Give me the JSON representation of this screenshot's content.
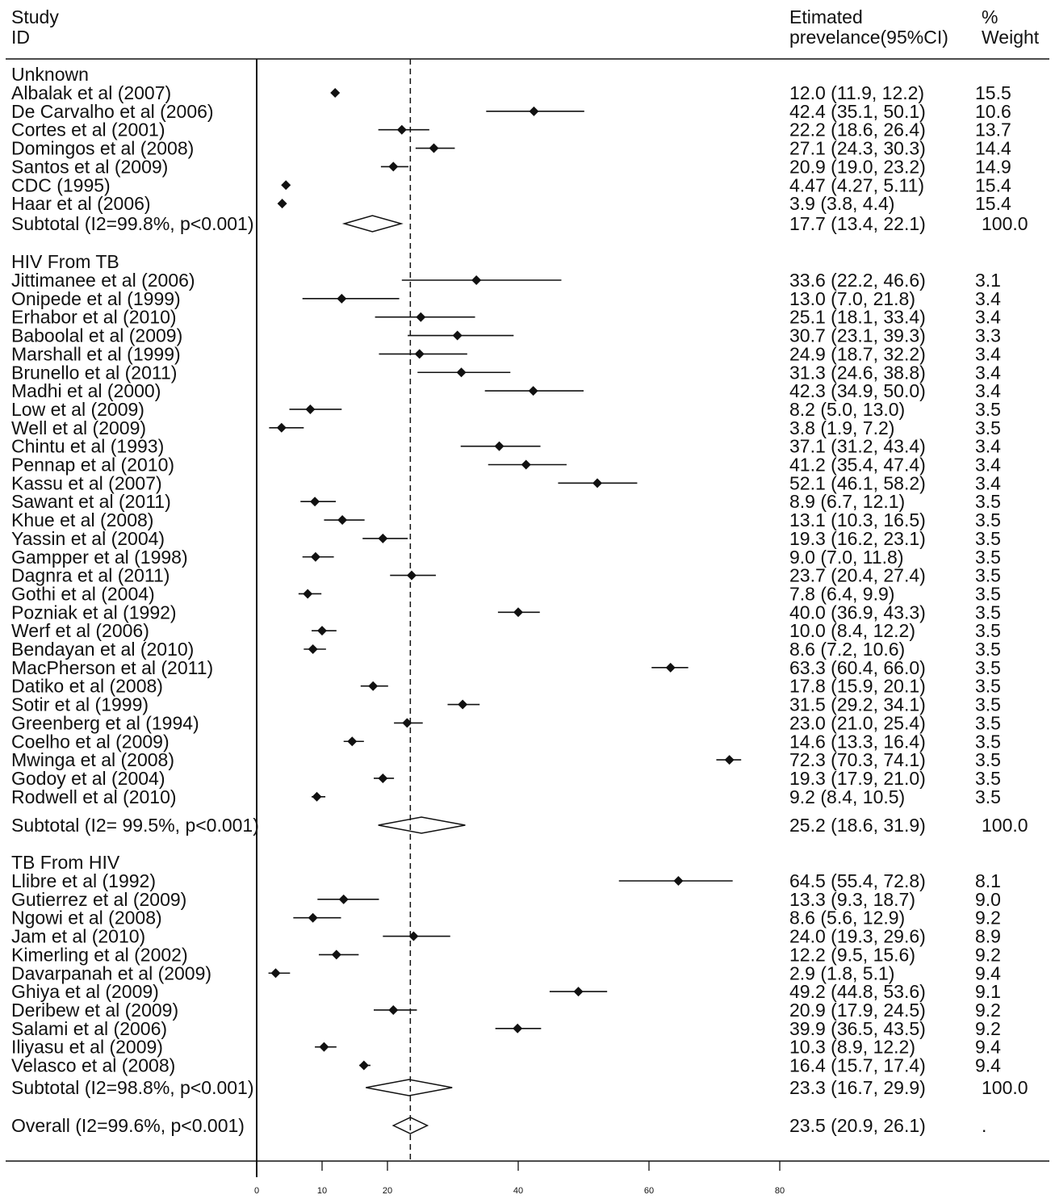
{
  "header": {
    "study_line1": "Study",
    "study_line2": "ID",
    "est_line1": "Etimated",
    "est_line2": "prevelance(95%CI)",
    "weight_line1": "%",
    "weight_line2": "Weight"
  },
  "chart_data": {
    "type": "forest",
    "x_ticks": [
      0,
      10,
      20,
      40,
      60,
      80
    ],
    "xlim": [
      0,
      80
    ],
    "reference_line": 23.5,
    "groups": [
      {
        "name": "Unknown",
        "studies": [
          {
            "label": "Albalak et al (2007)",
            "est": 12.0,
            "lo": 11.9,
            "hi": 12.2,
            "ci_text": "12.0 (11.9, 12.2)",
            "weight": "15.5"
          },
          {
            "label": "De Carvalho et al (2006)",
            "est": 42.4,
            "lo": 35.1,
            "hi": 50.1,
            "ci_text": "42.4 (35.1, 50.1)",
            "weight": "10.6"
          },
          {
            "label": "Cortes et al (2001)",
            "est": 22.2,
            "lo": 18.6,
            "hi": 26.4,
            "ci_text": "22.2 (18.6, 26.4)",
            "weight": "13.7"
          },
          {
            "label": "Domingos et al (2008)",
            "est": 27.1,
            "lo": 24.3,
            "hi": 30.3,
            "ci_text": "27.1 (24.3, 30.3)",
            "weight": "14.4"
          },
          {
            "label": "Santos et al (2009)",
            "est": 20.9,
            "lo": 19.0,
            "hi": 23.2,
            "ci_text": "20.9 (19.0, 23.2)",
            "weight": "14.9"
          },
          {
            "label": "CDC (1995)",
            "est": 4.47,
            "lo": 4.27,
            "hi": 5.11,
            "ci_text": "4.47 (4.27, 5.11)",
            "weight": "15.4"
          },
          {
            "label": "Haar et al (2006)",
            "est": 3.9,
            "lo": 3.8,
            "hi": 4.4,
            "ci_text": "3.9 (3.8, 4.4)",
            "weight": "15.4"
          }
        ],
        "subtotal": {
          "label": "Subtotal  (I2=99.8%, p<0.001)",
          "est": 17.7,
          "lo": 13.4,
          "hi": 22.1,
          "ci_text": "17.7 (13.4, 22.1)",
          "weight": "100.0"
        }
      },
      {
        "name": "HIV From TB",
        "studies": [
          {
            "label": "Jittimanee et al (2006)",
            "est": 33.6,
            "lo": 22.2,
            "hi": 46.6,
            "ci_text": "33.6 (22.2, 46.6)",
            "weight": "3.1"
          },
          {
            "label": "Onipede et al (1999)",
            "est": 13.0,
            "lo": 7.0,
            "hi": 21.8,
            "ci_text": "13.0 (7.0, 21.8)",
            "weight": "3.4"
          },
          {
            "label": "Erhabor et al (2010)",
            "est": 25.1,
            "lo": 18.1,
            "hi": 33.4,
            "ci_text": "25.1 (18.1, 33.4)",
            "weight": "3.4"
          },
          {
            "label": "Baboolal et al (2009)",
            "est": 30.7,
            "lo": 23.1,
            "hi": 39.3,
            "ci_text": "30.7 (23.1, 39.3)",
            "weight": "3.3"
          },
          {
            "label": "Marshall et al (1999)",
            "est": 24.9,
            "lo": 18.7,
            "hi": 32.2,
            "ci_text": "24.9 (18.7, 32.2)",
            "weight": "3.4"
          },
          {
            "label": "Brunello et al (2011)",
            "est": 31.3,
            "lo": 24.6,
            "hi": 38.8,
            "ci_text": "31.3 (24.6, 38.8)",
            "weight": "3.4"
          },
          {
            "label": "Madhi et al (2000)",
            "est": 42.3,
            "lo": 34.9,
            "hi": 50.0,
            "ci_text": "42.3 (34.9, 50.0)",
            "weight": "3.4"
          },
          {
            "label": "Low et al (2009)",
            "est": 8.2,
            "lo": 5.0,
            "hi": 13.0,
            "ci_text": "8.2 (5.0, 13.0)",
            "weight": "3.5"
          },
          {
            "label": "Well et al (2009)",
            "est": 3.8,
            "lo": 1.9,
            "hi": 7.2,
            "ci_text": "3.8 (1.9, 7.2)",
            "weight": "3.5"
          },
          {
            "label": "Chintu et al (1993)",
            "est": 37.1,
            "lo": 31.2,
            "hi": 43.4,
            "ci_text": "37.1 (31.2, 43.4)",
            "weight": "3.4"
          },
          {
            "label": "Pennap et al (2010)",
            "est": 41.2,
            "lo": 35.4,
            "hi": 47.4,
            "ci_text": "41.2 (35.4, 47.4)",
            "weight": "3.4"
          },
          {
            "label": "Kassu et al (2007)",
            "est": 52.1,
            "lo": 46.1,
            "hi": 58.2,
            "ci_text": "52.1 (46.1, 58.2)",
            "weight": "3.4"
          },
          {
            "label": "Sawant et al (2011)",
            "est": 8.9,
            "lo": 6.7,
            "hi": 12.1,
            "ci_text": "8.9 (6.7, 12.1)",
            "weight": "3.5"
          },
          {
            "label": "Khue et al (2008)",
            "est": 13.1,
            "lo": 10.3,
            "hi": 16.5,
            "ci_text": "13.1 (10.3, 16.5)",
            "weight": "3.5"
          },
          {
            "label": "Yassin et al (2004)",
            "est": 19.3,
            "lo": 16.2,
            "hi": 23.1,
            "ci_text": "19.3 (16.2, 23.1)",
            "weight": "3.5"
          },
          {
            "label": "Gampper et al (1998)",
            "est": 9.0,
            "lo": 7.0,
            "hi": 11.8,
            "ci_text": "9.0 (7.0, 11.8)",
            "weight": "3.5"
          },
          {
            "label": "Dagnra et al (2011)",
            "est": 23.7,
            "lo": 20.4,
            "hi": 27.4,
            "ci_text": "23.7 (20.4, 27.4)",
            "weight": "3.5"
          },
          {
            "label": "Gothi et al (2004)",
            "est": 7.8,
            "lo": 6.4,
            "hi": 9.9,
            "ci_text": "7.8 (6.4, 9.9)",
            "weight": "3.5"
          },
          {
            "label": "Pozniak et al (1992)",
            "est": 40.0,
            "lo": 36.9,
            "hi": 43.3,
            "ci_text": "40.0 (36.9, 43.3)",
            "weight": "3.5"
          },
          {
            "label": "Werf et al (2006)",
            "est": 10.0,
            "lo": 8.4,
            "hi": 12.2,
            "ci_text": "10.0 (8.4, 12.2)",
            "weight": "3.5"
          },
          {
            "label": "Bendayan et al (2010)",
            "est": 8.6,
            "lo": 7.2,
            "hi": 10.6,
            "ci_text": "8.6 (7.2, 10.6)",
            "weight": "3.5"
          },
          {
            "label": "MacPherson et al (2011)",
            "est": 63.3,
            "lo": 60.4,
            "hi": 66.0,
            "ci_text": "63.3 (60.4, 66.0)",
            "weight": "3.5"
          },
          {
            "label": "Datiko et al (2008)",
            "est": 17.8,
            "lo": 15.9,
            "hi": 20.1,
            "ci_text": "17.8 (15.9, 20.1)",
            "weight": "3.5"
          },
          {
            "label": "Sotir et al (1999)",
            "est": 31.5,
            "lo": 29.2,
            "hi": 34.1,
            "ci_text": "31.5 (29.2, 34.1)",
            "weight": "3.5"
          },
          {
            "label": "Greenberg et al (1994)",
            "est": 23.0,
            "lo": 21.0,
            "hi": 25.4,
            "ci_text": "23.0 (21.0, 25.4)",
            "weight": "3.5"
          },
          {
            "label": "Coelho et al (2009)",
            "est": 14.6,
            "lo": 13.3,
            "hi": 16.4,
            "ci_text": "14.6 (13.3, 16.4)",
            "weight": "3.5"
          },
          {
            "label": "Mwinga et al (2008)",
            "est": 72.3,
            "lo": 70.3,
            "hi": 74.1,
            "ci_text": "72.3 (70.3, 74.1)",
            "weight": "3.5"
          },
          {
            "label": "Godoy et al (2004)",
            "est": 19.3,
            "lo": 17.9,
            "hi": 21.0,
            "ci_text": "19.3 (17.9, 21.0)",
            "weight": "3.5"
          },
          {
            "label": "Rodwell et al (2010)",
            "est": 9.2,
            "lo": 8.4,
            "hi": 10.5,
            "ci_text": "9.2 (8.4, 10.5)",
            "weight": "3.5"
          }
        ],
        "subtotal": {
          "label": "Subtotal  (I2= 99.5%, p<0.001)",
          "est": 25.2,
          "lo": 18.6,
          "hi": 31.9,
          "ci_text": "25.2 (18.6, 31.9)",
          "weight": "100.0"
        }
      },
      {
        "name": "TB From HIV",
        "studies": [
          {
            "label": "Llibre et al (1992)",
            "est": 64.5,
            "lo": 55.4,
            "hi": 72.8,
            "ci_text": "64.5 (55.4, 72.8)",
            "weight": "8.1"
          },
          {
            "label": "Gutierrez et al (2009)",
            "est": 13.3,
            "lo": 9.3,
            "hi": 18.7,
            "ci_text": "13.3 (9.3, 18.7)",
            "weight": "9.0"
          },
          {
            "label": "Ngowi et al (2008)",
            "est": 8.6,
            "lo": 5.6,
            "hi": 12.9,
            "ci_text": "8.6 (5.6, 12.9)",
            "weight": "9.2"
          },
          {
            "label": "Jam et al (2010)",
            "est": 24.0,
            "lo": 19.3,
            "hi": 29.6,
            "ci_text": "24.0 (19.3, 29.6)",
            "weight": "8.9"
          },
          {
            "label": "Kimerling et al (2002)",
            "est": 12.2,
            "lo": 9.5,
            "hi": 15.6,
            "ci_text": "12.2 (9.5, 15.6)",
            "weight": "9.2"
          },
          {
            "label": "Davarpanah et al (2009)",
            "est": 2.9,
            "lo": 1.8,
            "hi": 5.1,
            "ci_text": "2.9 (1.8, 5.1)",
            "weight": "9.4"
          },
          {
            "label": "Ghiya et al (2009)",
            "est": 49.2,
            "lo": 44.8,
            "hi": 53.6,
            "ci_text": "49.2 (44.8, 53.6)",
            "weight": "9.1"
          },
          {
            "label": "Deribew et al (2009)",
            "est": 20.9,
            "lo": 17.9,
            "hi": 24.5,
            "ci_text": "20.9 (17.9, 24.5)",
            "weight": "9.2"
          },
          {
            "label": "Salami et al (2006)",
            "est": 39.9,
            "lo": 36.5,
            "hi": 43.5,
            "ci_text": "39.9 (36.5, 43.5)",
            "weight": "9.2"
          },
          {
            "label": "Iliyasu et al (2009)",
            "est": 10.3,
            "lo": 8.9,
            "hi": 12.2,
            "ci_text": "10.3 (8.9, 12.2)",
            "weight": "9.4"
          },
          {
            "label": "Velasco et al (2008)",
            "est": 16.4,
            "lo": 15.7,
            "hi": 17.4,
            "ci_text": "16.4 (15.7, 17.4)",
            "weight": "9.4"
          }
        ],
        "subtotal": {
          "label": "Subtotal  (I2=98.8%, p<0.001)",
          "est": 23.3,
          "lo": 16.7,
          "hi": 29.9,
          "ci_text": "23.3 (16.7, 29.9)",
          "weight": "100.0"
        }
      }
    ],
    "overall": {
      "label": "Overall    (I2=99.6%, p<0.001)",
      "est": 23.5,
      "lo": 20.9,
      "hi": 26.1,
      "ci_text": "23.5 (20.9, 26.1)",
      "weight": "."
    }
  }
}
